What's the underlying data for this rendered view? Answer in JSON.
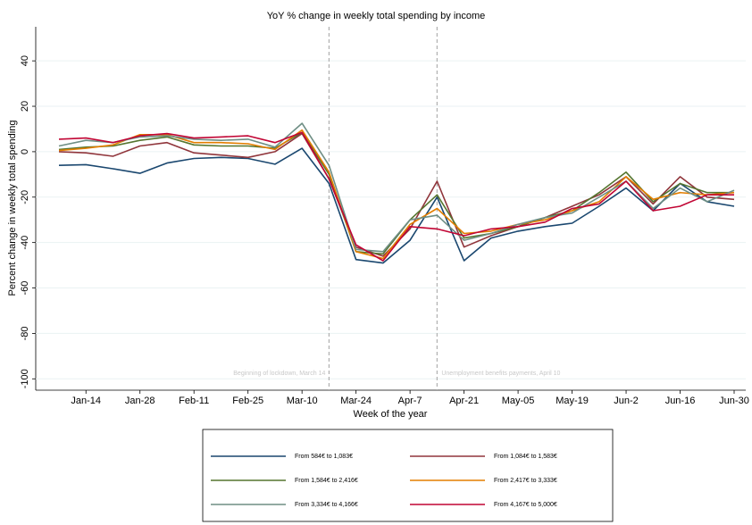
{
  "chart_data": {
    "type": "line",
    "title": "YoY % change in weekly total spending by income",
    "x_label": "Week of the year",
    "y_label": "Percent change in weekly total spending",
    "categories": [
      null,
      "Jan-14",
      null,
      "Jan-28",
      null,
      "Feb-11",
      null,
      "Feb-25",
      null,
      "Mar-10",
      null,
      "Mar-24",
      null,
      "Apr-7",
      null,
      "Apr-21",
      null,
      "May-05",
      null,
      "May-19",
      null,
      "Jun-2",
      null,
      "Jun-16",
      null,
      "Jun-30"
    ],
    "ylim": [
      -105,
      55
    ],
    "yticks": [
      -100,
      -80,
      -60,
      -40,
      -20,
      0,
      20,
      40
    ],
    "grid": true,
    "annotations": [
      "Beginning of lockdown, March 14",
      "Unemployment benefits payments, April 10"
    ],
    "series": [
      {
        "name": "From 584€ to 1,083€",
        "color": "#1a476f",
        "values": [
          -6,
          -5.7,
          -7.5,
          -9.5,
          -5,
          -3,
          -2.5,
          -3,
          -5.5,
          1.5,
          -14,
          -47.5,
          -49,
          -39,
          -20,
          -48,
          -38,
          -35,
          -33,
          -31.5,
          -24,
          -16,
          -26,
          -14,
          -22,
          -24
        ]
      },
      {
        "name": "From 1,084€ to 1,583€",
        "color": "#90353b",
        "values": [
          0,
          -0.5,
          -2,
          2.5,
          4,
          -0.5,
          -1.5,
          -2.5,
          0,
          8,
          -12,
          -42,
          -46,
          -34,
          -13,
          -42,
          -37,
          -33,
          -29,
          -24,
          -19,
          -11,
          -23,
          -11,
          -20,
          -21
        ]
      },
      {
        "name": "From 1,584€ to 2,416€",
        "color": "#55752f",
        "values": [
          1,
          2,
          2.5,
          5,
          6.5,
          3,
          2.5,
          2.5,
          1.5,
          8.5,
          -10,
          -44,
          -45,
          -30,
          -19,
          -38,
          -36,
          -33,
          -29,
          -26,
          -18,
          -9,
          -22,
          -14,
          -18,
          -18
        ]
      },
      {
        "name": "From 2,417€ to 3,333€",
        "color": "#e37e00",
        "values": [
          0.5,
          1.5,
          3,
          7.5,
          7.5,
          4,
          4,
          3.5,
          1,
          9.5,
          -9,
          -44,
          -47,
          -32,
          -25,
          -36,
          -35,
          -32,
          -30,
          -26,
          -22,
          -11,
          -21,
          -18,
          -19,
          -18
        ]
      },
      {
        "name": "From 3,334€ to 4,166€",
        "color": "#6e8e84",
        "values": [
          2.5,
          5,
          4,
          6.5,
          7,
          5.5,
          5,
          5.5,
          2,
          12.5,
          -6,
          -43,
          -44,
          -30,
          -28,
          -39,
          -36,
          -32,
          -29,
          -27,
          -20,
          -13,
          -25,
          -16,
          -22,
          -17
        ]
      },
      {
        "name": "From 4,167€ to 5,000€",
        "color": "#c10534",
        "values": [
          5.5,
          6,
          4,
          7,
          8,
          6,
          6.5,
          7,
          4,
          8.5,
          -12,
          -41,
          -48,
          -33,
          -34,
          -37,
          -34,
          -33,
          -31,
          -25,
          -23,
          -13,
          -26,
          -24,
          -19,
          -19
        ]
      }
    ]
  }
}
